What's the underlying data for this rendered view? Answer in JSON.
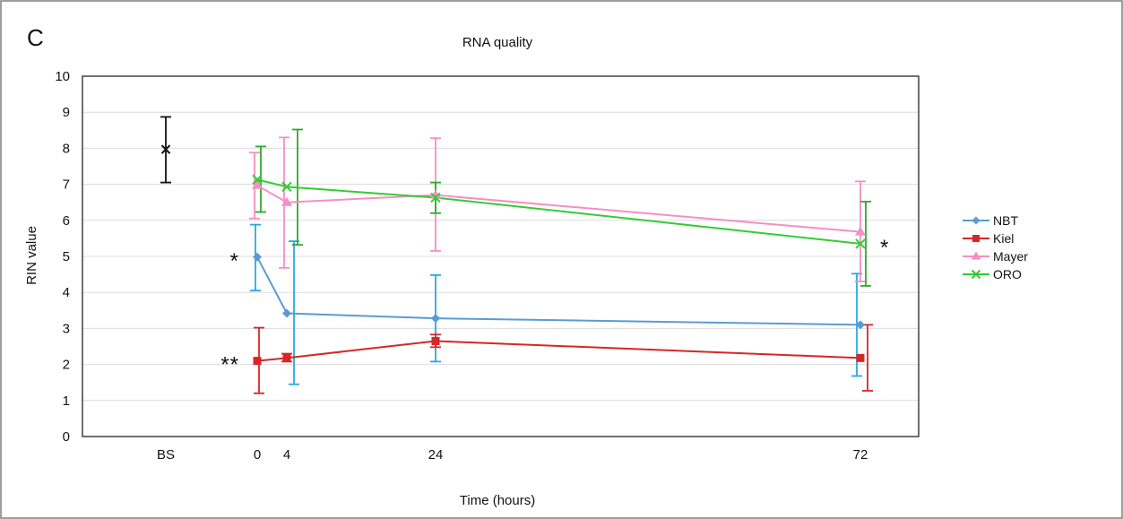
{
  "panel_label": "C",
  "chart_data": {
    "type": "line",
    "title": "RNA quality",
    "xlabel": "Time (hours)",
    "ylabel": "RIN value",
    "ylim": [
      0,
      10
    ],
    "yticks": [
      "0",
      "1",
      "2",
      "3",
      "4",
      "5",
      "6",
      "7",
      "8",
      "9",
      "10"
    ],
    "xticks": [
      {
        "label": "BS",
        "x": "BS"
      },
      {
        "label": "0",
        "x": 0
      },
      {
        "label": "4",
        "x": 4
      },
      {
        "label": "24",
        "x": 24
      },
      {
        "label": "72",
        "x": 72
      }
    ],
    "grid": "horizontal",
    "legend_position": "right",
    "baseline": {
      "x": "BS",
      "y": 7.97,
      "err_low": 7.05,
      "err_high": 8.87,
      "color": "#111111",
      "marker": "x"
    },
    "series": [
      {
        "name": "NBT",
        "color": "#5b9bd5",
        "error_color": "#29a9e0",
        "marker": "diamond",
        "x": [
          0,
          4,
          24,
          72
        ],
        "y": [
          4.98,
          3.42,
          3.28,
          3.1
        ],
        "err_low": [
          4.05,
          1.45,
          2.08,
          1.68
        ],
        "err_high": [
          5.88,
          5.42,
          4.48,
          4.52
        ]
      },
      {
        "name": "Kiel",
        "color": "#d62728",
        "error_color": "#d62728",
        "marker": "square",
        "x": [
          0,
          4,
          24,
          72
        ],
        "y": [
          2.1,
          2.18,
          2.65,
          2.18
        ],
        "err_low": [
          1.2,
          2.08,
          2.48,
          1.27
        ],
        "err_high": [
          3.02,
          2.3,
          2.83,
          3.1
        ]
      },
      {
        "name": "Mayer",
        "color": "#f48fc4",
        "error_color": "#f48fc4",
        "marker": "triangle",
        "x": [
          0,
          4,
          24,
          72
        ],
        "y": [
          6.97,
          6.5,
          6.7,
          5.68
        ],
        "err_low": [
          6.05,
          4.68,
          5.15,
          4.3
        ],
        "err_high": [
          7.88,
          8.3,
          8.28,
          7.08
        ]
      },
      {
        "name": "ORO",
        "color": "#33cc33",
        "error_color": "#2eaa2e",
        "marker": "x",
        "x": [
          0,
          4,
          24,
          72
        ],
        "y": [
          7.13,
          6.93,
          6.63,
          5.35
        ],
        "err_low": [
          6.23,
          5.32,
          6.2,
          4.18
        ],
        "err_high": [
          8.05,
          8.52,
          7.05,
          6.52
        ]
      }
    ],
    "annotations": [
      {
        "text": "*",
        "color": "#e8292e",
        "x": 0,
        "y": 4.98,
        "side": "left"
      },
      {
        "text": "**",
        "color": "#e8292e",
        "x": 0,
        "y": 2.1,
        "side": "left"
      },
      {
        "text": "*",
        "color": "#111111",
        "x": 72,
        "y": 5.35,
        "side": "right"
      }
    ]
  }
}
